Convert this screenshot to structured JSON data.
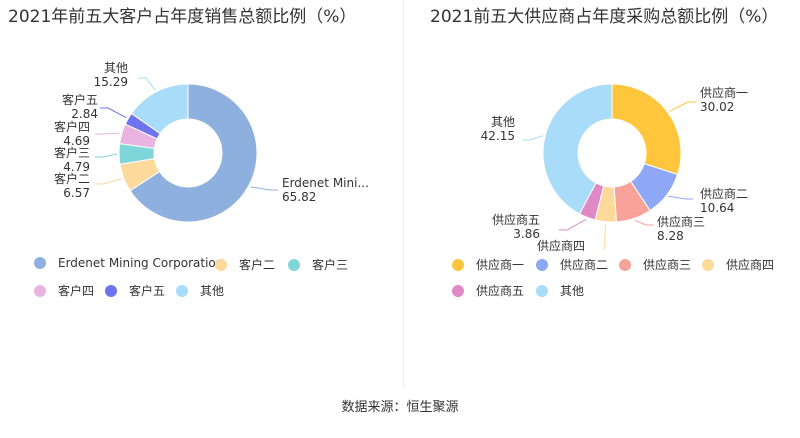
{
  "footer": "数据来源：恒生聚源",
  "chart_data": [
    {
      "type": "pie",
      "title": "2021年前五大客户占年度销售总额比例（%）",
      "categories": [
        "Erdenet Mining Corporation",
        "客户二",
        "客户三",
        "客户四",
        "客户五",
        "其他"
      ],
      "label_names": [
        "Erdenet Mini...",
        "客户二",
        "客户三",
        "客户四",
        "客户五",
        "其他"
      ],
      "values": [
        65.82,
        6.57,
        4.79,
        4.69,
        2.84,
        15.29
      ],
      "value_labels": [
        "65.82",
        "6.57",
        "4.79",
        "4.69",
        "2.84",
        "15.29"
      ],
      "colors": [
        "#8eb0de",
        "#fdd99b",
        "#7fd6d9",
        "#e9b5e0",
        "#6f73f0",
        "#a8dcf8"
      ],
      "legend_position": "bottom"
    },
    {
      "type": "pie",
      "title": "2021前五大供应商占年度采购总额比例（%）",
      "categories": [
        "供应商一",
        "供应商二",
        "供应商三",
        "供应商四",
        "供应商五",
        "其他"
      ],
      "label_names": [
        "供应商一",
        "供应商二",
        "供应商三",
        "供应商四",
        "供应商五",
        "其他"
      ],
      "values": [
        30.02,
        10.64,
        8.28,
        4.95,
        3.86,
        42.15
      ],
      "value_labels": [
        "30.02",
        "10.64",
        "8.28",
        "",
        "3.86",
        "42.15"
      ],
      "colors": [
        "#ffc53d",
        "#8ea8f5",
        "#f7a39a",
        "#fdd99b",
        "#df89c5",
        "#a8dcf8"
      ],
      "legend_position": "bottom"
    }
  ]
}
